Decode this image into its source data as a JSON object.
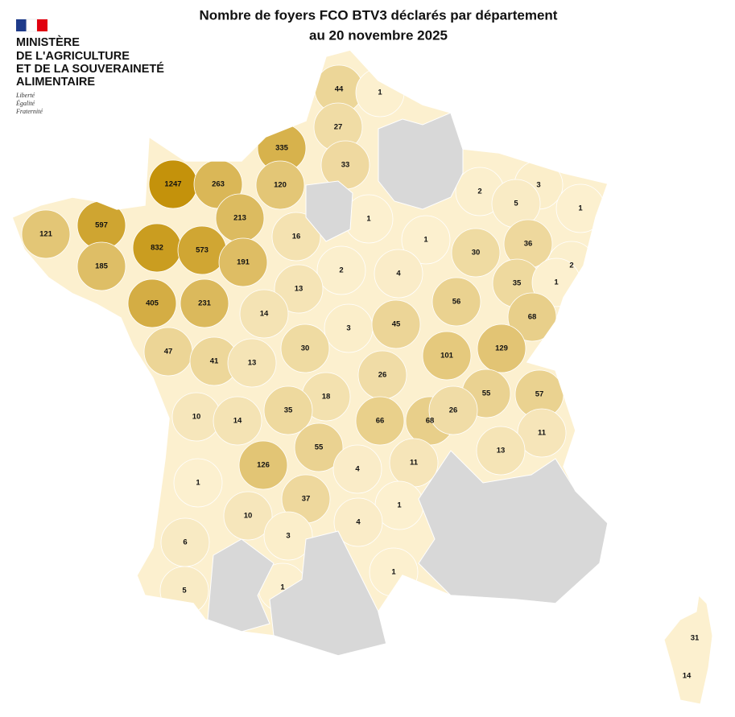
{
  "header": {
    "title": [
      "Nombre de foyers FCO BTV3 déclarés par département",
      "au 20 novembre 2025"
    ],
    "logo": [
      "MINISTÈRE",
      "DE L'AGRICULTURE",
      "ET DE LA SOUVERAINETÉ",
      "ALIMENTAIRE"
    ],
    "motto": [
      "Liberté",
      "Égalité",
      "Fraternité"
    ]
  },
  "departments": {
    "values": [
      44,
      1,
      27,
      335,
      33,
      1247,
      263,
      120,
      2,
      3,
      5,
      1,
      1,
      213,
      121,
      597,
      16,
      1,
      36,
      832,
      573,
      30,
      191,
      2,
      2,
      185,
      4,
      35,
      1,
      13,
      56,
      405,
      231,
      14,
      68,
      3,
      45,
      30,
      47,
      101,
      129,
      41,
      13,
      26,
      55,
      57,
      18,
      10,
      14,
      35,
      66,
      68,
      26,
      11,
      55,
      13,
      126,
      11,
      4,
      1,
      37,
      1,
      10,
      4,
      3,
      6,
      1,
      1,
      5,
      31,
      14
    ]
  }
}
